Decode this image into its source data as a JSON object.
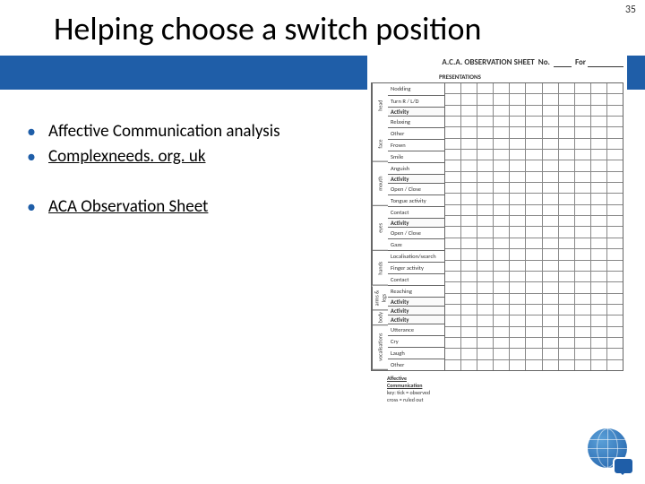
{
  "page_number": "35",
  "title": "Helping choose a switch position",
  "bullets": {
    "b1": "Affective Communication analysis",
    "b2": "Complexneeds. org. uk",
    "b3": "ACA Observation Sheet"
  },
  "sheet": {
    "header": "A.C.A. OBSERVATION SHEET",
    "header_suffix_label": "No.",
    "header_suffix_label2": "For",
    "presentations": "PRESENTATIONS",
    "sections": {
      "head": "head",
      "face": "face",
      "mouth": "mouth",
      "eyes": "eyes",
      "hands": "hands",
      "arms_legs": "arms & legs",
      "body": "body",
      "vocalisations": "vocalisations"
    },
    "rows": {
      "nodding": "Nodding",
      "turn": "Turn R / L/D",
      "activity1": "Activity",
      "relaxing": "Relaxing",
      "other1": "Other",
      "frown": "Frown",
      "smile": "Smile",
      "anguish": "Anguish",
      "activity2": "Activity",
      "openclose1": "Open / Close",
      "tongue": "Tongue activity",
      "contact1": "Contact",
      "activity3": "Activity",
      "openclose2": "Open / Close",
      "gaze": "Gaze",
      "localisation": "Localisation/search",
      "finger": "Finger activity",
      "contact2": "Contact",
      "reaching": "Reaching",
      "activity4": "Activity",
      "activity5": "Activity",
      "activity6": "Activity",
      "utterance": "Utterance",
      "cry": "Cry",
      "laugh": "Laugh",
      "other2": "Other"
    },
    "footer": {
      "t1": "Affective",
      "t2": "Communication",
      "t3": "key: tick = observed",
      "t4": "cross = ruled out"
    },
    "grid_columns": 11,
    "colors": {
      "border": "#666666",
      "background": "#ffffff"
    }
  },
  "colors": {
    "accent": "#1f5ea8",
    "text": "#000000",
    "bg": "#ffffff"
  }
}
